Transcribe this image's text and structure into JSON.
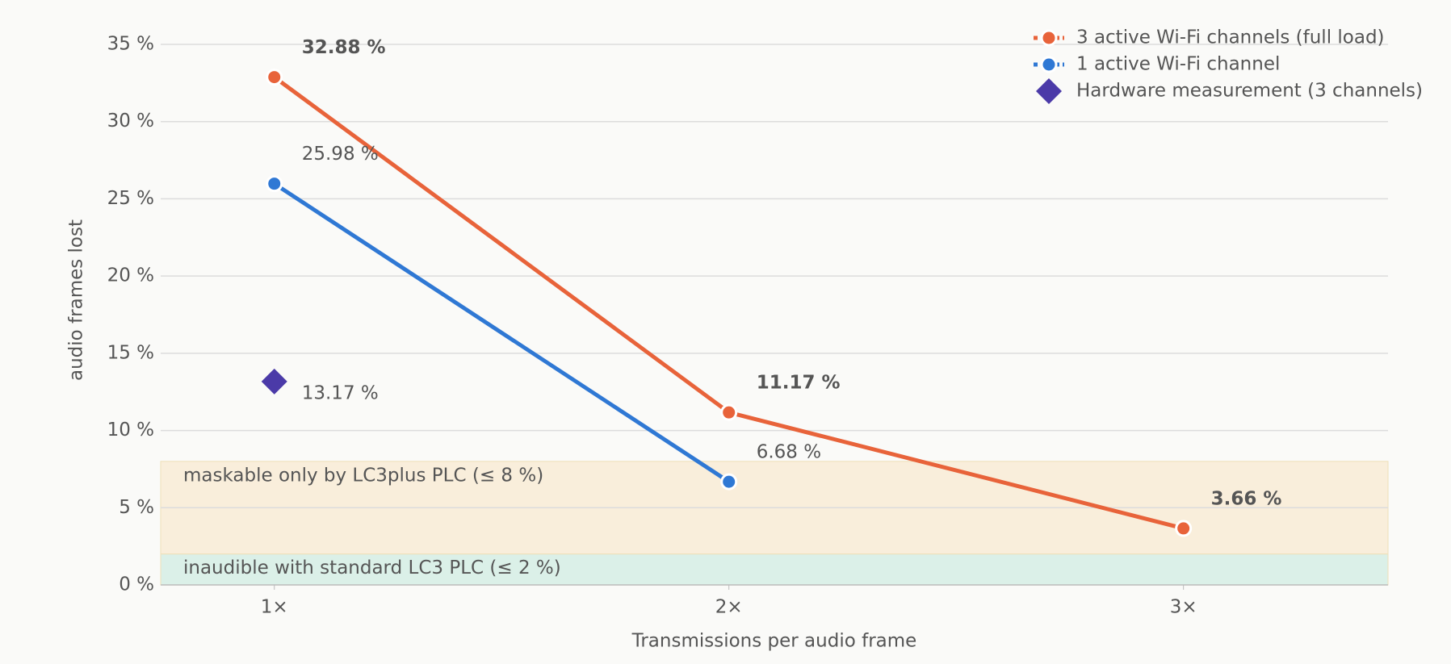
{
  "chart_data": {
    "type": "line",
    "x_label": "Transmissions per audio frame",
    "y_label": "audio frames lost",
    "x": [
      1,
      2,
      3
    ],
    "xlim": [
      0.75,
      3.45
    ],
    "xticks": [
      {
        "value": 1,
        "label": "1×"
      },
      {
        "value": 2,
        "label": "2×"
      },
      {
        "value": 3,
        "label": "3×"
      }
    ],
    "ylim": [
      0,
      35
    ],
    "yticks": [
      {
        "value": 0,
        "label": "0 %"
      },
      {
        "value": 5,
        "label": "5 %"
      },
      {
        "value": 10,
        "label": "10 %"
      },
      {
        "value": 15,
        "label": "15 %"
      },
      {
        "value": 20,
        "label": "20 %"
      },
      {
        "value": 25,
        "label": "25 %"
      },
      {
        "value": 30,
        "label": "30 %"
      },
      {
        "value": 35,
        "label": "35 %"
      }
    ],
    "grid": true,
    "legend": "top-right",
    "bands": [
      {
        "from": 2,
        "to": 8,
        "label": "maskable only by LC3plus PLC (≤ 8 %)",
        "color": "#f9eedb",
        "text_color": "#8a6a00"
      },
      {
        "from": 0,
        "to": 2,
        "label": "inaudible with standard LC3 PLC (≤ 2 %)",
        "color": "#dbf0e8",
        "text_color": "#138a5e"
      }
    ],
    "series": [
      {
        "name": "3 active Wi-Fi channels (full load)",
        "color": "#e8633a",
        "marker": "circle",
        "label_color": "#000000",
        "label_weight": "bold",
        "values": [
          32.88,
          11.17,
          3.66
        ],
        "value_labels": [
          "32.88 %",
          "11.17 %",
          "3.66 %"
        ]
      },
      {
        "name": "1 active Wi-Fi channel",
        "color": "#2f78d4",
        "marker": "circle",
        "label_color": "#555555",
        "label_weight": "normal",
        "values": [
          25.98,
          6.68,
          null
        ],
        "value_labels": [
          "25.98 %",
          "6.68 %",
          null
        ]
      },
      {
        "name": "Hardware measurement (3 channels)",
        "color": "#4b3aa8",
        "marker": "diamond",
        "label_color": "#4b3aa8",
        "label_weight": "normal",
        "values": [
          13.17,
          null,
          null
        ],
        "value_labels": [
          "13.17 %",
          null,
          null
        ]
      }
    ]
  }
}
